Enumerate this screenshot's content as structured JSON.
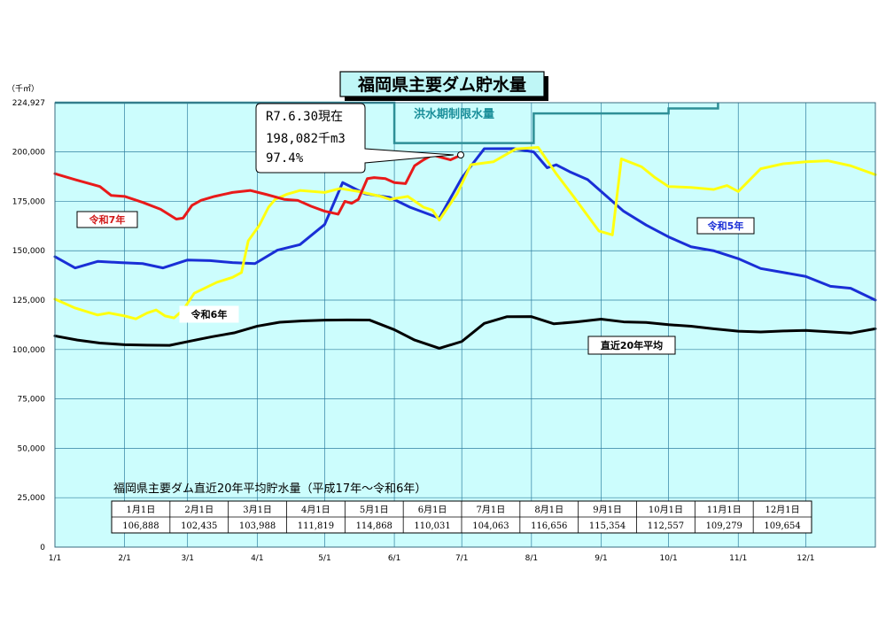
{
  "title": "福岡県主要ダム貯水量",
  "unit_label": "（千㎥）",
  "y_top_label": "224,927",
  "flood_label": "洪水期制限水量",
  "callout": [
    "R7.6.30現在",
    "198,082千m3",
    " 97.4%"
  ],
  "series_labels": {
    "r7": "令和7年",
    "r6": "令和6年",
    "r5": "令和5年",
    "avg": "直近20年平均"
  },
  "avg_table": {
    "title": "福岡県主要ダム直近20年平均貯水量（平成17年～令和6年）",
    "headers": [
      "1月1日",
      "2月1日",
      "3月1日",
      "4月1日",
      "5月1日",
      "6月1日",
      "7月1日",
      "8月1日",
      "9月1日",
      "10月1日",
      "11月1日",
      "12月1日"
    ],
    "values": [
      "106,888",
      "102,435",
      "103,988",
      "111,819",
      "114,868",
      "110,031",
      "104,063",
      "116,656",
      "115,354",
      "112,557",
      "109,279",
      "109,654"
    ]
  },
  "colors": {
    "plot_bg": "#ccfdfd",
    "grid": "#2f7fa0",
    "flood": "#2e8f97",
    "r7": "#e81a1a",
    "r6": "#ffff10",
    "r5": "#1a2fd6",
    "avg": "#000000"
  },
  "chart_data": {
    "type": "line",
    "title": "福岡県主要ダム貯水量",
    "ylabel": "（千㎥）",
    "ylim": [
      0,
      224927
    ],
    "yticks": [
      0,
      25000,
      50000,
      75000,
      100000,
      125000,
      150000,
      175000,
      200000,
      224927
    ],
    "ytick_labels": [
      "0",
      "25,000",
      "50,000",
      "75,000",
      "100,000",
      "125,000",
      "150,000",
      "175,000",
      "200,000",
      "224,927"
    ],
    "xlim": [
      1,
      366
    ],
    "xticks": [
      1,
      32,
      60,
      91,
      121,
      152,
      182,
      213,
      244,
      274,
      305,
      335
    ],
    "xtick_labels": [
      "1/1",
      "2/1",
      "3/1",
      "4/1",
      "5/1",
      "6/1",
      "7/1",
      "8/1",
      "9/1",
      "10/1",
      "11/1",
      "12/1"
    ],
    "grid": true,
    "flood_limit": [
      {
        "day": 1,
        "value": 224927
      },
      {
        "day": 152,
        "value": 224927
      },
      {
        "day": 152,
        "value": 204500
      },
      {
        "day": 214,
        "value": 204500
      },
      {
        "day": 214,
        "value": 219500
      },
      {
        "day": 274,
        "value": 219500
      },
      {
        "day": 274,
        "value": 222000
      },
      {
        "day": 296,
        "value": 222000
      },
      {
        "day": 296,
        "value": 224927
      }
    ],
    "series": [
      {
        "name": "直近20年平均",
        "key": "avg",
        "x": [
          1,
          11,
          21,
          32,
          42,
          52,
          60,
          71,
          81,
          91,
          101,
          111,
          121,
          131,
          141,
          152,
          161,
          172,
          182,
          192,
          202,
          213,
          223,
          233,
          244,
          254,
          264,
          274,
          284,
          294,
          305,
          315,
          325,
          335,
          345,
          355,
          366
        ],
        "y": [
          106888,
          104800,
          103300,
          102435,
          102200,
          102100,
          103988,
          106500,
          108500,
          111819,
          113800,
          114500,
          114868,
          115000,
          114900,
          110031,
          104800,
          100600,
          104063,
          113200,
          116600,
          116656,
          113000,
          114000,
          115354,
          114000,
          113700,
          112557,
          111800,
          110500,
          109279,
          108900,
          109400,
          109654,
          109000,
          108300,
          110500
        ]
      },
      {
        "name": "令和5年",
        "key": "r5",
        "x": [
          1,
          10,
          20,
          30,
          40,
          49,
          60,
          70,
          80,
          90,
          100,
          110,
          121,
          129,
          139,
          150,
          159,
          172,
          182,
          192,
          205,
          214,
          220,
          224,
          230,
          238,
          244,
          254,
          264,
          274,
          284,
          294,
          305,
          315,
          325,
          335,
          346,
          355,
          366
        ],
        "y": [
          147000,
          141300,
          144600,
          144000,
          143500,
          141300,
          145300,
          145000,
          144000,
          143500,
          150300,
          153100,
          163300,
          184500,
          178800,
          177000,
          172000,
          166500,
          186800,
          201600,
          201700,
          200000,
          192000,
          193500,
          190000,
          186000,
          180000,
          170000,
          163000,
          157000,
          152000,
          150000,
          146000,
          141000,
          139000,
          137000,
          132000,
          131000,
          125000
        ]
      },
      {
        "name": "令和6年",
        "key": "r6",
        "x": [
          1,
          10,
          20,
          25,
          32,
          37,
          42,
          46,
          50,
          54,
          58,
          63,
          73,
          80,
          84,
          87,
          92,
          96,
          99,
          104,
          110,
          121,
          128,
          136,
          146,
          150,
          158,
          165,
          169,
          172,
          180,
          186,
          196,
          206,
          216,
          224,
          232,
          243,
          249,
          253,
          262,
          268,
          274,
          284,
          294,
          300,
          305,
          315,
          325,
          335,
          345,
          355,
          366
        ],
        "y": [
          125500,
          121000,
          117500,
          118500,
          117000,
          115500,
          118500,
          120000,
          117000,
          116000,
          120000,
          128500,
          134000,
          136500,
          139000,
          155000,
          163000,
          172000,
          176000,
          178500,
          180500,
          179500,
          181500,
          180000,
          177500,
          176000,
          177500,
          172000,
          170500,
          165500,
          179000,
          193500,
          195000,
          201500,
          202300,
          189000,
          177000,
          160000,
          158000,
          196500,
          192500,
          187000,
          182500,
          182000,
          181000,
          183000,
          180000,
          191500,
          194000,
          195000,
          195500,
          193000,
          188500
        ]
      },
      {
        "name": "令和7年",
        "key": "r7",
        "x": [
          1,
          10,
          21,
          26,
          32,
          40,
          48,
          55,
          58,
          62,
          66,
          72,
          80,
          88,
          95,
          103,
          109,
          115,
          121,
          127,
          130,
          133,
          136,
          140,
          143,
          148,
          152,
          157,
          161,
          165,
          169,
          172,
          177,
          181
        ],
        "y": [
          189000,
          186000,
          182500,
          178000,
          177500,
          174500,
          171000,
          166000,
          166500,
          173000,
          175500,
          177500,
          179500,
          180500,
          178500,
          176000,
          175500,
          172500,
          170000,
          168500,
          175000,
          174000,
          176000,
          186500,
          187000,
          186500,
          184500,
          184000,
          193000,
          196000,
          198500,
          197500,
          196000,
          198082
        ]
      }
    ]
  }
}
